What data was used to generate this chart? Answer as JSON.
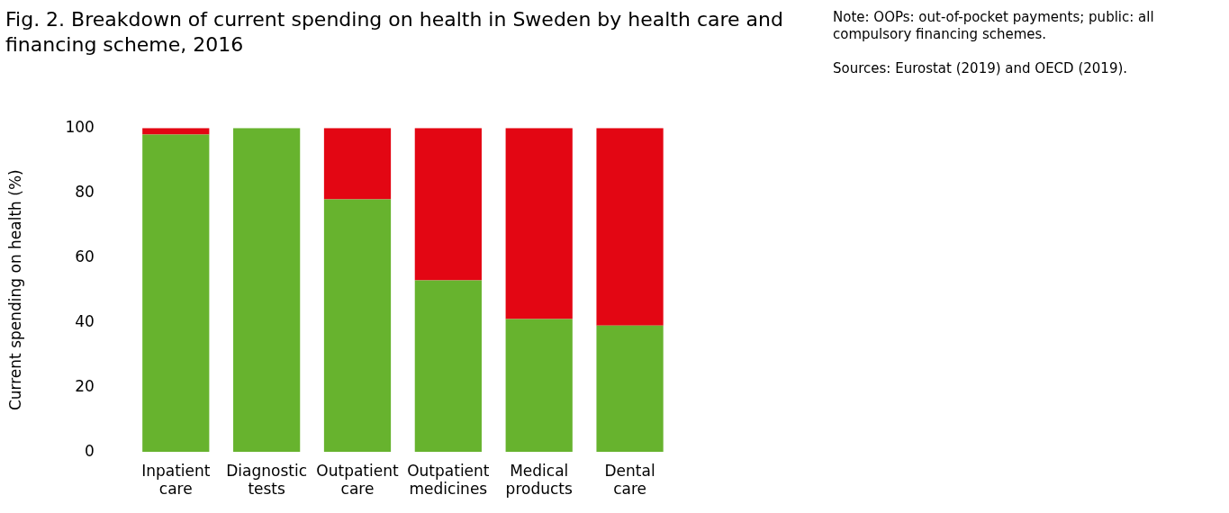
{
  "chart_data": {
    "type": "bar",
    "title": "Fig. 2. Breakdown of current spending on health in Sweden by health care and financing scheme, 2016",
    "ylabel": "Current spending on health (%)",
    "annotations": [
      "Note: OOPs: out-of-pocket payments; public: all compulsory financing schemes.",
      "Sources: Eurostat (2019) and OECD (2019)."
    ],
    "categories": [
      "Inpatient care",
      "Diagnostic tests",
      "Outpatient care",
      "Outpatient medicines",
      "Medical products",
      "Dental care"
    ],
    "stacked": true,
    "ylim": [
      0,
      100
    ],
    "yticks": [
      0,
      20,
      40,
      60,
      80,
      100
    ],
    "grid": false,
    "legend": false,
    "series": [
      {
        "color": "#67b32e",
        "values": [
          98,
          100,
          78,
          53,
          41,
          39
        ]
      },
      {
        "color": "#e30613",
        "values": [
          2,
          0,
          22,
          47,
          59,
          61
        ]
      }
    ]
  }
}
